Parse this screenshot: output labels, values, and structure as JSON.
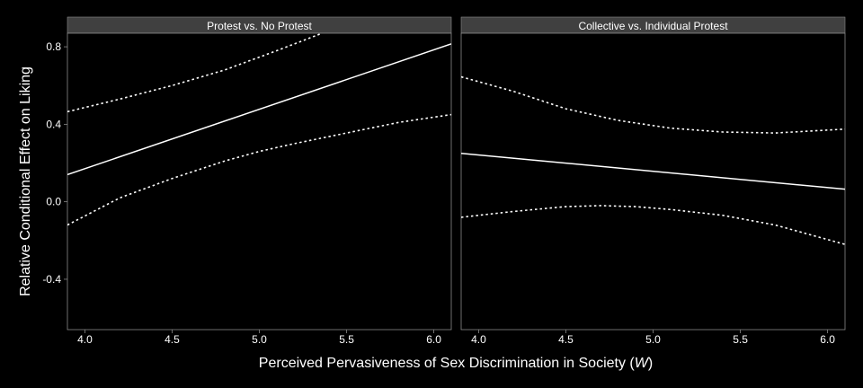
{
  "chart_data": {
    "type": "line",
    "xlabel": "Perceived Pervasiveness of Sex Discrimination in Society (",
    "xlabel_var": "W",
    "xlabel_end": ")",
    "ylabel": "Relative Conditional Effect on Liking",
    "xlim": [
      3.9,
      6.1
    ],
    "ylim": [
      -0.66,
      0.87
    ],
    "x_ticks": [
      4.0,
      4.5,
      5.0,
      5.5,
      6.0
    ],
    "x_tick_labels": [
      "4.0",
      "4.5",
      "5.0",
      "5.5",
      "6.0"
    ],
    "y_ticks": [
      0.8,
      0.4,
      0.0,
      -0.4
    ],
    "y_tick_labels": [
      "0.8",
      "0.4",
      "0.0",
      "-0.4"
    ],
    "grid": false,
    "colors": {
      "background": "#000000",
      "strip": "#404040",
      "line": "#ffffff",
      "panel_border": "#8a8a8a"
    },
    "panels": [
      {
        "title": "Protest vs. No Protest",
        "series": [
          {
            "role": "estimate",
            "x": [
              3.9,
              6.1
            ],
            "y": [
              0.14,
              0.815
            ]
          },
          {
            "role": "upper_ci",
            "x": [
              3.9,
              4.2,
              4.5,
              4.8,
              5.1,
              5.36
            ],
            "y": [
              0.465,
              0.53,
              0.6,
              0.68,
              0.78,
              0.87
            ]
          },
          {
            "role": "lower_ci",
            "x": [
              3.9,
              4.2,
              4.5,
              4.8,
              5.0,
              5.2,
              5.5,
              5.8,
              6.1
            ],
            "y": [
              -0.12,
              0.02,
              0.12,
              0.21,
              0.26,
              0.3,
              0.355,
              0.41,
              0.45
            ]
          }
        ]
      },
      {
        "title": "Collective vs. Individual Protest",
        "series": [
          {
            "role": "estimate",
            "x": [
              3.9,
              6.1
            ],
            "y": [
              0.25,
              0.065
            ]
          },
          {
            "role": "upper_ci",
            "x": [
              3.9,
              4.2,
              4.5,
              4.8,
              5.1,
              5.4,
              5.7,
              6.1
            ],
            "y": [
              0.645,
              0.57,
              0.48,
              0.42,
              0.38,
              0.36,
              0.355,
              0.375
            ]
          },
          {
            "role": "lower_ci",
            "x": [
              3.9,
              4.2,
              4.5,
              4.7,
              4.9,
              5.1,
              5.4,
              5.7,
              6.1
            ],
            "y": [
              -0.08,
              -0.05,
              -0.025,
              -0.02,
              -0.025,
              -0.04,
              -0.07,
              -0.12,
              -0.22
            ]
          }
        ]
      }
    ]
  }
}
